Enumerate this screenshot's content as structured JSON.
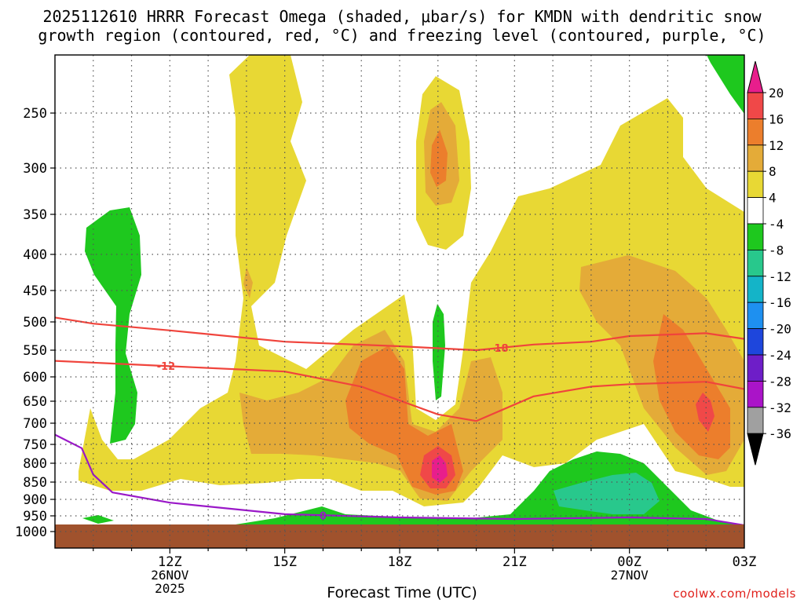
{
  "title_line1": "2025112610 HRRR Forecast Omega (shaded, μbar/s) for KMDN with dendritic snow",
  "title_line2": "growth region (contoured, red, °C) and freezing level (contoured, purple, °C)",
  "xlabel": "Forecast Time (UTC)",
  "credit": "coolwx.com/models",
  "chart_data": {
    "type": "time-height cross-section (filled contour)",
    "station": "KMDN",
    "model": "HRRR",
    "init": "2025112610",
    "x_unit": "forecast hour from 2025-11-26 09Z",
    "xlim": [
      0,
      18
    ],
    "y_unit": "pressure (hPa)",
    "ylim": [
      1000,
      200
    ],
    "ytick_labels": [
      "250",
      "300",
      "350",
      "400",
      "450",
      "500",
      "550",
      "600",
      "650",
      "700",
      "750",
      "800",
      "850",
      "900",
      "950",
      "1000"
    ],
    "ytick_values": [
      250,
      300,
      350,
      400,
      450,
      500,
      550,
      600,
      650,
      700,
      750,
      800,
      850,
      900,
      950,
      1000
    ],
    "xtick_labels": [
      "12Z",
      "15Z",
      "18Z",
      "21Z",
      "00Z",
      "03Z"
    ],
    "xtick_values": [
      3,
      6,
      9,
      12,
      15,
      18
    ],
    "xtick_date_labels": [
      {
        "hour": 3,
        "lines": [
          "26NOV",
          "2025"
        ]
      },
      {
        "hour": 15,
        "lines": [
          "27NOV"
        ]
      }
    ],
    "shading": {
      "variable": "Omega",
      "unit": "μbar/s",
      "colorbar_labels": [
        "20",
        "16",
        "12",
        "8",
        "4",
        "-4",
        "-8",
        "-12",
        "-16",
        "-20",
        "-24",
        "-28",
        "-32",
        "-36"
      ],
      "colorbar_colors": [
        "#e81e8c",
        "#f04848",
        "#ec7e2c",
        "#e4ab38",
        "#e8d834",
        "#ffffff",
        "#1ec81e",
        "#28c88c",
        "#14b4c8",
        "#1e90f0",
        "#1e46dc",
        "#6e1ec8",
        "#aa14c8",
        "#a0a0a0",
        "#000000"
      ]
    },
    "contours": [
      {
        "name": "dendritic growth -18C",
        "color": "#f0443c",
        "label": "-18",
        "label_hour": 11.6,
        "points": [
          [
            0,
            493
          ],
          [
            1,
            503
          ],
          [
            3,
            515
          ],
          [
            6,
            535
          ],
          [
            9,
            543
          ],
          [
            11,
            550
          ],
          [
            12.5,
            540
          ],
          [
            14,
            535
          ],
          [
            15,
            525
          ],
          [
            17,
            520
          ],
          [
            18,
            530
          ]
        ]
      },
      {
        "name": "dendritic growth -12C",
        "color": "#f0443c",
        "label": "-12",
        "label_hour": 2.9,
        "points": [
          [
            0,
            570
          ],
          [
            3,
            580
          ],
          [
            6,
            590
          ],
          [
            8,
            620
          ],
          [
            10,
            680
          ],
          [
            11,
            695
          ],
          [
            12.5,
            640
          ],
          [
            14,
            620
          ],
          [
            15,
            615
          ],
          [
            17,
            610
          ],
          [
            18,
            625
          ]
        ]
      },
      {
        "name": "freezing level 0C",
        "color": "#9a18c8",
        "label": "0",
        "label_hour": 7,
        "points": [
          [
            0,
            727
          ],
          [
            0.7,
            760
          ],
          [
            1,
            830
          ],
          [
            1.5,
            880
          ],
          [
            3,
            910
          ],
          [
            6,
            945
          ],
          [
            9,
            955
          ],
          [
            12,
            960
          ],
          [
            15,
            955
          ],
          [
            17,
            960
          ],
          [
            18,
            980
          ]
        ]
      }
    ],
    "omega_regions": [
      {
        "name": "upper rising column yellow",
        "value_range": [
          4,
          8
        ],
        "hours": [
          4.6,
          6.6
        ],
        "pressure": [
          200,
          620
        ]
      },
      {
        "name": "mid-level rising band",
        "value_range": [
          4,
          12
        ],
        "hours": [
          1,
          18
        ],
        "pressure": [
          470,
          880
        ]
      },
      {
        "name": "orange core 18-20Z",
        "value_range": [
          8,
          16
        ],
        "hours": [
          8,
          11
        ],
        "pressure": [
          540,
          870
        ]
      },
      {
        "name": "max near 20Z 800hPa",
        "value_range": [
          16,
          20
        ],
        "hours": [
          10.4,
          10.8
        ],
        "pressure": [
          785,
          830
        ]
      },
      {
        "name": "upper isolated rising 20Z",
        "value_range": [
          4,
          12
        ],
        "hours": [
          9.6,
          11
        ],
        "pressure": [
          215,
          400
        ]
      },
      {
        "name": "late max near 03Z 650hPa",
        "value_range": [
          12,
          16
        ],
        "hours": [
          17,
          17.6
        ],
        "pressure": [
          600,
          730
        ]
      },
      {
        "name": "sinking early 10-11Z",
        "value_range": [
          -8,
          -4
        ],
        "hours": [
          0.8,
          2.2
        ],
        "pressure": [
          345,
          755
        ]
      },
      {
        "name": "sinking near surface 00-01Z",
        "value_range": [
          -12,
          -4
        ],
        "hours": [
          12.8,
          16.5
        ],
        "pressure": [
          760,
          980
        ]
      },
      {
        "name": "sinking upper right 03Z",
        "value_range": [
          -8,
          -4
        ],
        "hours": [
          17,
          18
        ],
        "pressure": [
          200,
          260
        ]
      }
    ]
  }
}
